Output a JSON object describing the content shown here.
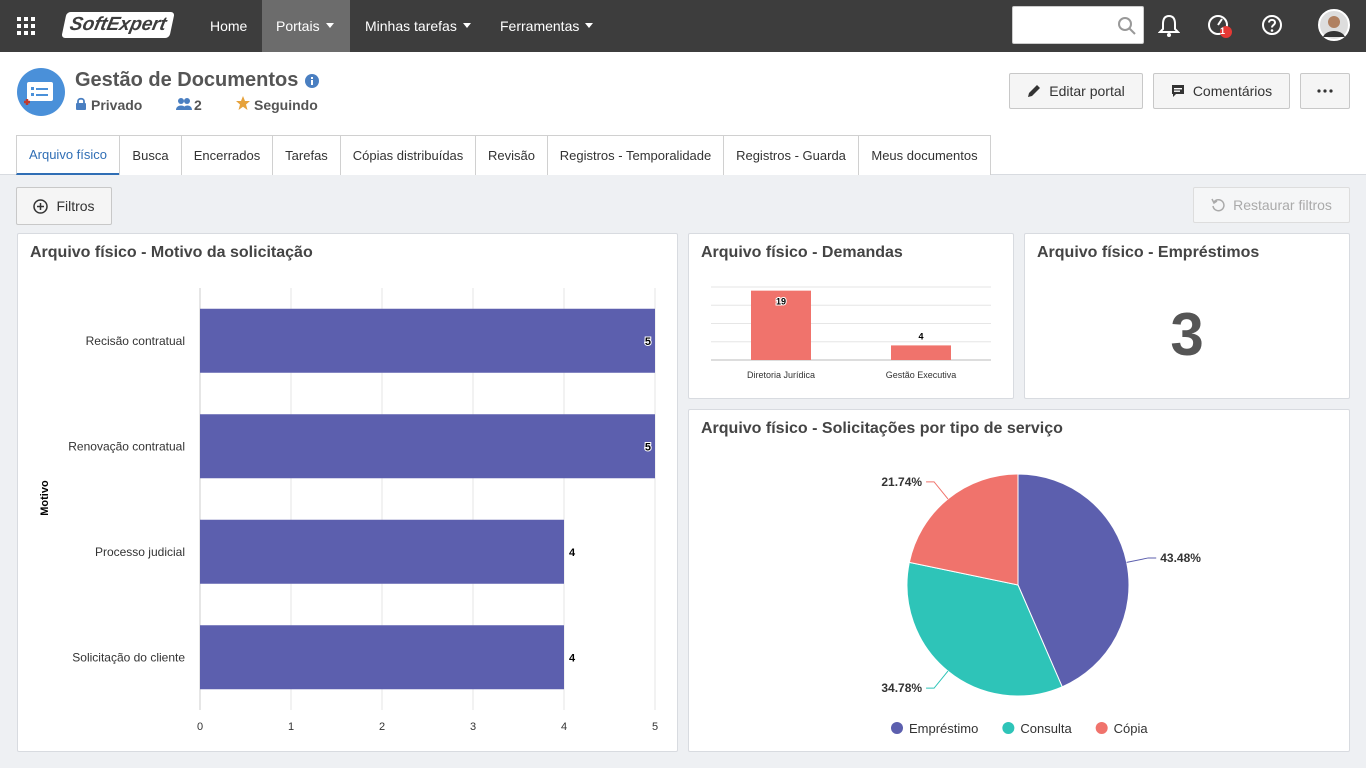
{
  "nav": {
    "brand": "SoftExpert",
    "items": [
      "Home",
      "Portais",
      "Minhas tarefas",
      "Ferramentas"
    ],
    "notifications": 1
  },
  "header": {
    "title": "Gestão de Documentos",
    "privacy": "Privado",
    "members": 2,
    "follow": "Seguindo",
    "buttons": [
      "Editar portal",
      "Comentários"
    ]
  },
  "tabs": [
    "Arquivo físico",
    "Busca",
    "Encerrados",
    "Tarefas",
    "Cópias distribuídas",
    "Revisão",
    "Registros - Temporalidade",
    "Registros - Guarda",
    "Meus documentos"
  ],
  "toolbar": {
    "filters": "Filtros",
    "reset": "Restaurar filtros"
  },
  "kpi": {
    "title": "Arquivo físico - Empréstimos",
    "value": 3
  },
  "chart_data": [
    {
      "type": "hbar",
      "title": "Arquivo físico - Motivo da solicitação",
      "y_label": "Motivo",
      "categories": [
        "Recisão contratual",
        "Renovação contratual",
        "Processo judicial",
        "Solicitação do cliente"
      ],
      "values": [
        5,
        5,
        4,
        4
      ],
      "color": "#5c5fae",
      "xlim": [
        0,
        5
      ],
      "xticks": [
        0,
        1,
        2,
        3,
        4,
        5
      ],
      "grid": true
    },
    {
      "type": "bar",
      "title": "Arquivo físico - Demandas",
      "categories": [
        "Diretoria Jurídica",
        "Gestão Executiva"
      ],
      "values": [
        19,
        4
      ],
      "color": "#f0736c",
      "ylim": [
        0,
        20
      ],
      "yticks": [
        0,
        5,
        10,
        15,
        20
      ],
      "grid": true,
      "tick_labels": false
    },
    {
      "type": "pie",
      "title": "Arquivo físico - Solicitações por tipo de serviço",
      "categories": [
        "Empréstimo",
        "Consulta",
        "Cópia"
      ],
      "values": [
        43.48,
        34.78,
        21.74
      ],
      "value_labels": [
        "43.48%",
        "34.78%",
        "21.74%"
      ],
      "colors": [
        "#5c5fae",
        "#2ec4b8",
        "#f0736c"
      ],
      "legend": "bottom"
    }
  ]
}
